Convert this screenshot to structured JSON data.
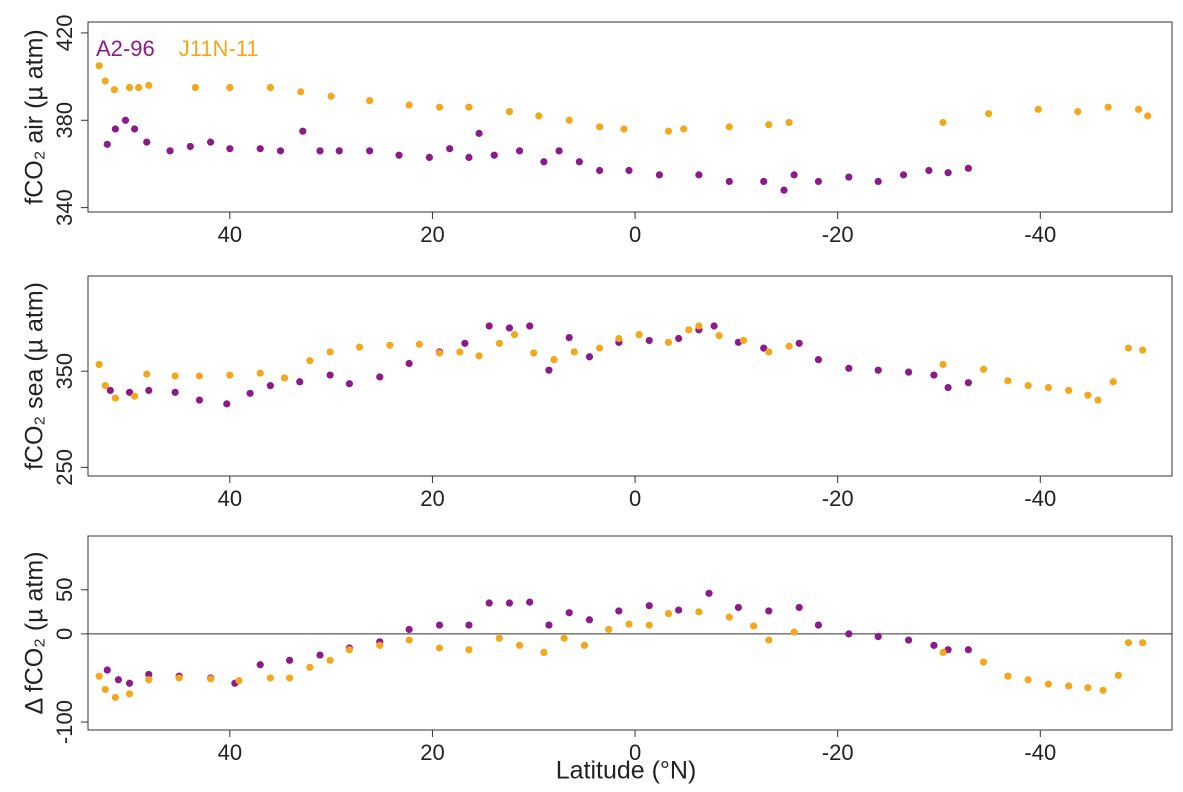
{
  "chart_data": [
    {
      "type": "scatter",
      "ylabel": "fCO₂ air (µ atm)",
      "xlim": [
        54,
        -53
      ],
      "xticks": [
        40,
        20,
        0,
        -20,
        -40
      ],
      "ylim": [
        338,
        425
      ],
      "yticks": [
        340,
        380,
        420
      ],
      "legend": "top-left",
      "series": [
        {
          "name": "A2-96",
          "color": "#8b1a8b",
          "x": [
            52.1,
            51.3,
            50.3,
            49.4,
            48.2,
            45.9,
            43.9,
            41.9,
            40,
            37,
            35,
            32.8,
            31.1,
            29.2,
            26.2,
            23.3,
            20.3,
            18.3,
            16.4,
            15.4,
            13.9,
            11.4,
            9,
            7.5,
            5.5,
            3.5,
            0.6,
            -2.4,
            -6.3,
            -9.3,
            -12.7,
            -14.7,
            -15.7,
            -18.1,
            -21.1,
            -24,
            -26.5,
            -29,
            -30.9,
            -32.9
          ],
          "values": [
            369,
            376,
            380,
            376,
            370,
            366,
            368,
            370,
            367,
            367,
            366,
            375,
            366,
            366,
            366,
            364,
            363,
            367,
            363,
            374,
            364,
            366,
            361,
            366,
            361,
            357,
            357,
            355,
            355,
            352,
            352,
            348,
            355,
            352,
            354,
            352,
            355,
            357,
            356,
            358
          ]
        },
        {
          "name": "J11N-11",
          "color": "#f2a81d",
          "x": [
            52.9,
            52.3,
            51.4,
            49.9,
            49,
            48,
            43.4,
            40,
            36,
            33,
            30,
            26.2,
            22.3,
            19.3,
            16.4,
            12.4,
            9.5,
            6.5,
            3.5,
            1.1,
            -3.3,
            -4.8,
            -9.3,
            -13.2,
            -15.2,
            -30.4,
            -34.9,
            -39.8,
            -43.7,
            -46.7,
            -49.7,
            -50.6
          ],
          "values": [
            405,
            398,
            394,
            395,
            395,
            396,
            395,
            395,
            395,
            393,
            391,
            389,
            387,
            386,
            386,
            384,
            382,
            380,
            377,
            376,
            375,
            376,
            377,
            378,
            379,
            379,
            383,
            385,
            384,
            386,
            385,
            382
          ]
        }
      ]
    },
    {
      "type": "scatter",
      "ylabel": "fCO₂ sea (µ atm)",
      "xlim": [
        54,
        -53
      ],
      "xticks": [
        40,
        20,
        0,
        -20,
        -40
      ],
      "ylim": [
        241,
        449
      ],
      "yticks": [
        250,
        350
      ],
      "series": [
        {
          "color": "#8b1a8b",
          "x": [
            51.8,
            49.9,
            48,
            45.4,
            43,
            40.3,
            38,
            36,
            33.1,
            30.1,
            28.2,
            25.2,
            22.3,
            19.3,
            16.8,
            14.4,
            12.4,
            10.4,
            8.5,
            6.5,
            4.5,
            1.6,
            -1.4,
            -4.3,
            -6.3,
            -7.8,
            -10.2,
            -12.7,
            -16.2,
            -18.1,
            -21.1,
            -24,
            -27,
            -29.5,
            -30.9,
            -32.9
          ],
          "values": [
            330,
            328,
            330,
            328,
            320,
            316,
            327,
            335,
            339,
            346,
            337,
            344,
            358,
            370,
            379,
            397,
            395,
            397,
            351,
            385,
            365,
            380,
            382,
            384,
            393,
            397,
            380,
            374,
            379,
            362,
            353,
            351,
            349,
            346,
            333,
            338
          ]
        },
        {
          "color": "#f2a81d",
          "x": [
            52.9,
            52.3,
            51.3,
            49.4,
            48.2,
            45.4,
            43,
            40,
            37,
            34.6,
            32.1,
            30.1,
            27.2,
            24.2,
            21.3,
            19.3,
            17.3,
            15.4,
            13.4,
            11.9,
            10,
            8,
            6,
            3.5,
            1.6,
            -0.4,
            -3.3,
            -5.3,
            -6.3,
            -8.3,
            -10.7,
            -13.2,
            -15.2,
            -30.4,
            -34.4,
            -36.8,
            -38.8,
            -40.8,
            -42.8,
            -44.7,
            -45.7,
            -47.2,
            -48.7,
            -50.1
          ],
          "values": [
            357,
            335,
            322,
            324,
            347,
            345,
            345,
            346,
            348,
            343,
            361,
            370,
            375,
            377,
            378,
            369,
            370,
            366,
            379,
            388,
            369,
            362,
            370,
            374,
            384,
            388,
            380,
            393,
            397,
            387,
            382,
            370,
            376,
            357,
            352,
            340,
            335,
            333,
            330,
            325,
            320,
            339,
            374,
            372
          ]
        }
      ]
    },
    {
      "type": "scatter",
      "ylabel": "Δ fCO₂ (µ atm)",
      "xlabel": "Latitude (°N)",
      "xlim": [
        54,
        -53
      ],
      "xticks": [
        40,
        20,
        0,
        -20,
        -40
      ],
      "ylim": [
        -109,
        111
      ],
      "yticks": [
        -100,
        0,
        50
      ],
      "hline": 0,
      "series": [
        {
          "color": "#8b1a8b",
          "x": [
            52.1,
            51,
            49.9,
            48,
            45,
            41.9,
            39.5,
            37,
            34.1,
            31.1,
            28.2,
            25.2,
            22.3,
            19.3,
            16.4,
            14.4,
            12.4,
            10.4,
            8.5,
            6.5,
            4.5,
            1.6,
            -1.4,
            -4.3,
            -7.3,
            -10.2,
            -13.2,
            -16.2,
            -18.1,
            -21.1,
            -24,
            -27,
            -29.5,
            -30.9,
            -32.9
          ],
          "values": [
            -41,
            -52,
            -56,
            -46,
            -48,
            -50,
            -56,
            -35,
            -30,
            -24,
            -16,
            -9,
            5,
            10,
            10,
            35,
            35,
            36,
            10,
            24,
            16,
            26,
            32,
            27,
            46,
            30,
            26,
            30,
            10,
            0,
            -3,
            -7,
            -13,
            -18,
            -18
          ]
        },
        {
          "color": "#f2a81d",
          "x": [
            52.9,
            52.3,
            51.3,
            49.9,
            48,
            45,
            41.9,
            39.1,
            36,
            34.1,
            32.1,
            30.1,
            28.2,
            25.2,
            22.3,
            19.3,
            16.4,
            13.4,
            11.4,
            9,
            7,
            5,
            2.6,
            0.6,
            -1.4,
            -3.3,
            -6.3,
            -9.3,
            -11.7,
            -13.2,
            -15.7,
            -30.4,
            -34.4,
            -36.8,
            -38.8,
            -40.8,
            -42.8,
            -44.7,
            -46.2,
            -47.7,
            -48.7,
            -50.1
          ],
          "values": [
            -48,
            -63,
            -72,
            -68,
            -52,
            -50,
            -51,
            -53,
            -50,
            -50,
            -38,
            -30,
            -18,
            -13,
            -7,
            -16,
            -18,
            -5,
            -13,
            -21,
            -5,
            -13,
            5,
            11,
            10,
            23,
            25,
            19,
            9,
            -7,
            2,
            -21,
            -32,
            -48,
            -52,
            -57,
            -59,
            -61,
            -64,
            -47,
            -10,
            -10
          ]
        }
      ]
    }
  ]
}
